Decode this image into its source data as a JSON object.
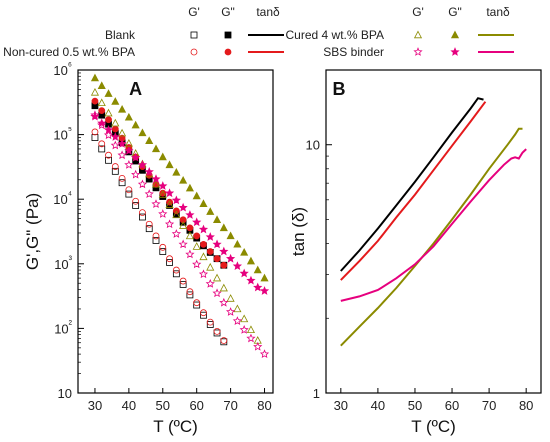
{
  "legend": {
    "headers": [
      "G'",
      "G\"",
      "tanδ"
    ],
    "groups": [
      {
        "name": "Blank",
        "color": "#000000"
      },
      {
        "name": "Non-cured 0.5 wt.% BPA",
        "color": "#e41a1c"
      },
      {
        "name": "Cured 4 wt.% BPA",
        "color": "#8b8b00"
      },
      {
        "name": "SBS binder",
        "color": "#e6007e"
      }
    ]
  },
  "chart_data": [
    {
      "type": "scatter",
      "panel_label": "A",
      "xlabel": "T (ºC)",
      "ylabel": "G',G\" (Pa)",
      "x_ticks": [
        30,
        40,
        50,
        60,
        70,
        80
      ],
      "y_scale": "log",
      "ylim": [
        10,
        1000000
      ],
      "y_tick_labels": [
        "10",
        "10²",
        "10³",
        "10⁴",
        "10⁵",
        "10⁶"
      ],
      "x_tick_labels": [
        "30",
        "40",
        "50",
        "60",
        "70",
        "80"
      ],
      "grid": false,
      "series": [
        {
          "name": "Blank G'",
          "marker": "open-square",
          "color": "#000000",
          "points": [
            [
              30,
              90000
            ],
            [
              32,
              60000
            ],
            [
              34,
              40000
            ],
            [
              36,
              27000
            ],
            [
              38,
              18000
            ],
            [
              40,
              12000
            ],
            [
              42,
              8000
            ],
            [
              44,
              5300
            ],
            [
              46,
              3500
            ],
            [
              48,
              2300
            ],
            [
              50,
              1550
            ],
            [
              52,
              1050
            ],
            [
              54,
              700
            ],
            [
              56,
              480
            ],
            [
              58,
              330
            ],
            [
              60,
              230
            ],
            [
              62,
              160
            ],
            [
              64,
              115
            ],
            [
              66,
              85
            ],
            [
              68,
              62
            ]
          ]
        },
        {
          "name": "Blank G\"",
          "marker": "filled-square",
          "color": "#000000",
          "points": [
            [
              30,
              280000
            ],
            [
              32,
              200000
            ],
            [
              34,
              145000
            ],
            [
              36,
              105000
            ],
            [
              38,
              75000
            ],
            [
              40,
              54000
            ],
            [
              42,
              39000
            ],
            [
              44,
              28000
            ],
            [
              46,
              20500
            ],
            [
              48,
              15000
            ],
            [
              50,
              11000
            ],
            [
              52,
              8000
            ],
            [
              54,
              5900
            ],
            [
              56,
              4400
            ],
            [
              58,
              3300
            ],
            [
              60,
              2500
            ],
            [
              62,
              1900
            ],
            [
              64,
              1500
            ],
            [
              66,
              1200
            ],
            [
              68,
              950
            ]
          ]
        },
        {
          "name": "Non-cured 0.5 wt.% BPA G'",
          "marker": "open-circle",
          "color": "#e41a1c",
          "points": [
            [
              30,
              110000
            ],
            [
              32,
              72000
            ],
            [
              34,
              48000
            ],
            [
              36,
              32000
            ],
            [
              38,
              21000
            ],
            [
              40,
              14000
            ],
            [
              42,
              9300
            ],
            [
              44,
              6200
            ],
            [
              46,
              4100
            ],
            [
              48,
              2700
            ],
            [
              50,
              1800
            ],
            [
              52,
              1200
            ],
            [
              54,
              800
            ],
            [
              56,
              540
            ],
            [
              58,
              370
            ],
            [
              60,
              250
            ],
            [
              62,
              175
            ],
            [
              64,
              125
            ],
            [
              66,
              90
            ],
            [
              68,
              65
            ]
          ]
        },
        {
          "name": "Non-cured 0.5 wt.% BPA G\"",
          "marker": "filled-circle",
          "color": "#e41a1c",
          "points": [
            [
              30,
              330000
            ],
            [
              32,
              235000
            ],
            [
              34,
              170000
            ],
            [
              36,
              122000
            ],
            [
              38,
              88000
            ],
            [
              40,
              63000
            ],
            [
              42,
              45000
            ],
            [
              44,
              32000
            ],
            [
              46,
              23500
            ],
            [
              48,
              17000
            ],
            [
              50,
              12400
            ],
            [
              52,
              9000
            ],
            [
              54,
              6600
            ],
            [
              56,
              4800
            ],
            [
              58,
              3600
            ],
            [
              60,
              2700
            ],
            [
              62,
              2000
            ],
            [
              64,
              1550
            ],
            [
              66,
              1200
            ],
            [
              68,
              950
            ]
          ]
        },
        {
          "name": "Cured 4 wt.% BPA G'",
          "marker": "open-triangle",
          "color": "#8b8b00",
          "points": [
            [
              30,
              450000
            ],
            [
              32,
              310000
            ],
            [
              34,
              215000
            ],
            [
              36,
              150000
            ],
            [
              38,
              105000
            ],
            [
              40,
              73000
            ],
            [
              42,
              51000
            ],
            [
              44,
              35000
            ],
            [
              46,
              24500
            ],
            [
              48,
              17000
            ],
            [
              50,
              11800
            ],
            [
              52,
              8200
            ],
            [
              54,
              5700
            ],
            [
              56,
              3900
            ],
            [
              58,
              2700
            ],
            [
              60,
              1850
            ],
            [
              62,
              1280
            ],
            [
              64,
              880
            ],
            [
              66,
              600
            ],
            [
              68,
              420
            ],
            [
              70,
              290
            ],
            [
              72,
              200
            ],
            [
              74,
              140
            ],
            [
              76,
              95
            ],
            [
              78,
              65
            ]
          ]
        },
        {
          "name": "Cured 4 wt.% BPA G\"",
          "marker": "filled-triangle",
          "color": "#8b8b00",
          "points": [
            [
              30,
              750000
            ],
            [
              32,
              570000
            ],
            [
              34,
              430000
            ],
            [
              36,
              325000
            ],
            [
              38,
              245000
            ],
            [
              40,
              185000
            ],
            [
              42,
              140000
            ],
            [
              44,
              106000
            ],
            [
              46,
              80000
            ],
            [
              48,
              60000
            ],
            [
              50,
              45000
            ],
            [
              52,
              34000
            ],
            [
              54,
              26000
            ],
            [
              56,
              19500
            ],
            [
              58,
              14800
            ],
            [
              60,
              11200
            ],
            [
              62,
              8500
            ],
            [
              64,
              6400
            ],
            [
              66,
              4800
            ],
            [
              68,
              3600
            ],
            [
              70,
              2700
            ],
            [
              72,
              2000
            ],
            [
              74,
              1500
            ],
            [
              76,
              1100
            ],
            [
              78,
              800
            ],
            [
              80,
              600
            ]
          ]
        },
        {
          "name": "SBS binder G'",
          "marker": "open-star",
          "color": "#e6007e",
          "points": [
            [
              30,
              200000
            ],
            [
              32,
              140000
            ],
            [
              34,
              98000
            ],
            [
              36,
              68000
            ],
            [
              38,
              48000
            ],
            [
              40,
              34000
            ],
            [
              42,
              24000
            ],
            [
              44,
              17000
            ],
            [
              46,
              12000
            ],
            [
              48,
              8400
            ],
            [
              50,
              5900
            ],
            [
              52,
              4100
            ],
            [
              54,
              2900
            ],
            [
              56,
              2000
            ],
            [
              58,
              1400
            ],
            [
              60,
              980
            ],
            [
              62,
              690
            ],
            [
              64,
              490
            ],
            [
              66,
              350
            ],
            [
              68,
              250
            ],
            [
              70,
              180
            ],
            [
              72,
              130
            ],
            [
              74,
              95
            ],
            [
              76,
              70
            ],
            [
              78,
              52
            ],
            [
              80,
              40
            ]
          ]
        },
        {
          "name": "SBS binder G\"",
          "marker": "filled-star",
          "color": "#e6007e",
          "points": [
            [
              30,
              190000
            ],
            [
              32,
              150000
            ],
            [
              34,
              118000
            ],
            [
              36,
              92000
            ],
            [
              38,
              72000
            ],
            [
              40,
              56000
            ],
            [
              42,
              44000
            ],
            [
              44,
              34000
            ],
            [
              46,
              26500
            ],
            [
              48,
              20500
            ],
            [
              50,
              16000
            ],
            [
              52,
              12400
            ],
            [
              54,
              9600
            ],
            [
              56,
              7400
            ],
            [
              58,
              5700
            ],
            [
              60,
              4400
            ],
            [
              62,
              3400
            ],
            [
              64,
              2600
            ],
            [
              66,
              2000
            ],
            [
              68,
              1550
            ],
            [
              70,
              1200
            ],
            [
              72,
              920
            ],
            [
              74,
              710
            ],
            [
              76,
              550
            ],
            [
              78,
              430
            ],
            [
              80,
              380
            ]
          ]
        }
      ]
    },
    {
      "type": "line",
      "panel_label": "B",
      "xlabel": "T (ºC)",
      "ylabel": "tan (δ)",
      "x_ticks": [
        30,
        40,
        50,
        60,
        70,
        80
      ],
      "x_tick_labels": [
        "30",
        "40",
        "50",
        "60",
        "70",
        "80"
      ],
      "y_scale": "log",
      "ylim": [
        1,
        20
      ],
      "y_ticks": [
        1,
        10
      ],
      "y_tick_labels": [
        "1",
        "10"
      ],
      "grid": false,
      "series": [
        {
          "name": "Blank tanδ",
          "color": "#000000",
          "points": [
            [
              30,
              3.1
            ],
            [
              35,
              3.75
            ],
            [
              40,
              4.6
            ],
            [
              45,
              5.7
            ],
            [
              50,
              7.1
            ],
            [
              55,
              8.9
            ],
            [
              60,
              11.2
            ],
            [
              65,
              14.0
            ],
            [
              67,
              15.4
            ],
            [
              68.5,
              15.2
            ]
          ]
        },
        {
          "name": "Non-cured 0.5 wt.% BPA tanδ",
          "color": "#e41a1c",
          "points": [
            [
              30,
              2.85
            ],
            [
              35,
              3.4
            ],
            [
              40,
              4.1
            ],
            [
              45,
              5.1
            ],
            [
              50,
              6.3
            ],
            [
              55,
              7.9
            ],
            [
              60,
              9.9
            ],
            [
              65,
              12.4
            ],
            [
              69,
              14.9
            ]
          ]
        },
        {
          "name": "Cured 4 wt.% BPA tanδ",
          "color": "#8b8b00",
          "points": [
            [
              30,
              1.55
            ],
            [
              35,
              1.85
            ],
            [
              40,
              2.2
            ],
            [
              45,
              2.65
            ],
            [
              50,
              3.25
            ],
            [
              55,
              4.0
            ],
            [
              60,
              5.0
            ],
            [
              65,
              6.3
            ],
            [
              70,
              8.0
            ],
            [
              75,
              10.0
            ],
            [
              77,
              11.0
            ],
            [
              78,
              11.6
            ],
            [
              79,
              11.6
            ]
          ]
        },
        {
          "name": "SBS binder tanδ",
          "color": "#e6007e",
          "points": [
            [
              30,
              2.35
            ],
            [
              35,
              2.45
            ],
            [
              40,
              2.6
            ],
            [
              45,
              2.9
            ],
            [
              50,
              3.3
            ],
            [
              55,
              3.9
            ],
            [
              60,
              4.8
            ],
            [
              65,
              5.9
            ],
            [
              70,
              7.2
            ],
            [
              74,
              8.3
            ],
            [
              76,
              8.8
            ],
            [
              77,
              8.9
            ],
            [
              78,
              8.8
            ],
            [
              79,
              9.3
            ],
            [
              80,
              9.6
            ]
          ]
        }
      ]
    }
  ]
}
